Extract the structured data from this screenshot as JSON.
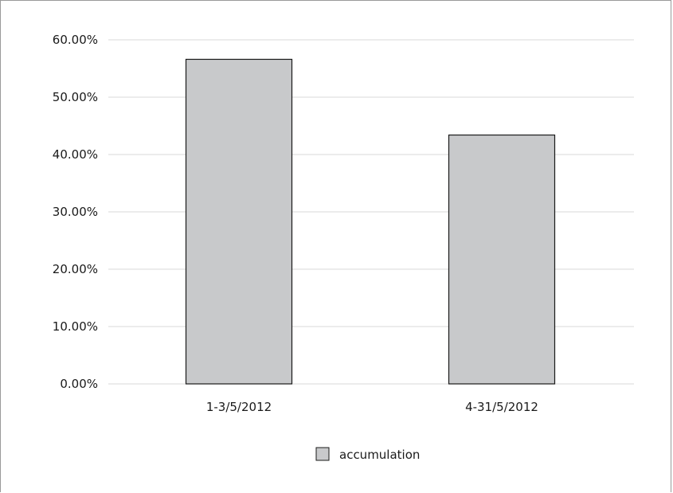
{
  "chart_data": {
    "type": "bar",
    "categories": [
      "1-3/5/2012",
      "4-31/5/2012"
    ],
    "series": [
      {
        "name": "accumulation",
        "values": [
          56.6,
          43.4
        ]
      }
    ],
    "yticks": [
      "0.00%",
      "10.00%",
      "20.00%",
      "30.00%",
      "40.00%",
      "50.00%",
      "60.00%"
    ],
    "ylim": [
      0,
      60
    ],
    "grid": true,
    "legend": "bottom-center",
    "colors": {
      "bar_fill": "#c8c9cb",
      "bar_stroke": "#1a1a1a",
      "grid": "#d9d9d9"
    }
  }
}
